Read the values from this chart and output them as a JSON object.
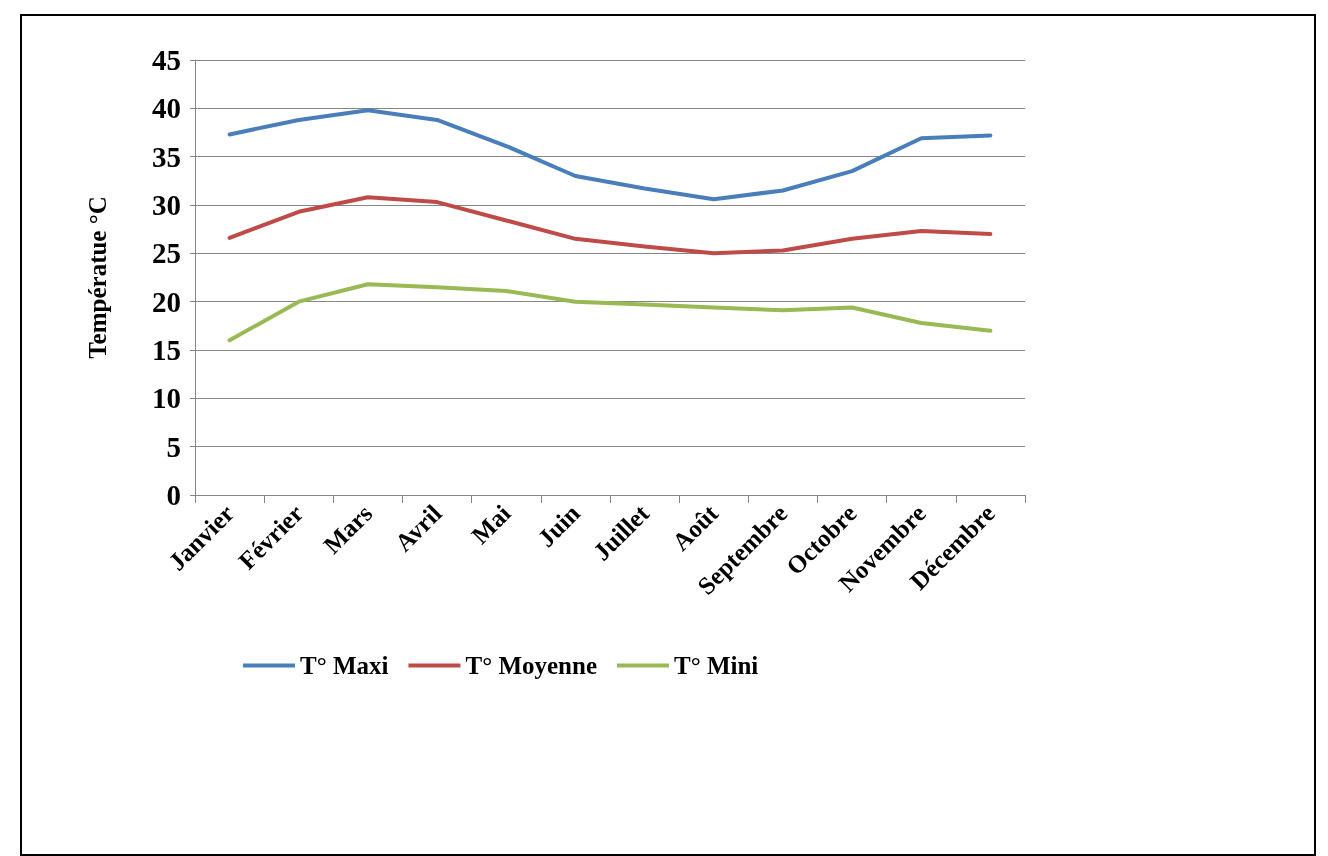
{
  "chart_data": {
    "type": "line",
    "ylabel": "Températue °C",
    "categories": [
      "Janvier",
      "Février",
      "Mars",
      "Avril",
      "Mai",
      "Juin",
      "Juillet",
      "Août",
      "Septembre",
      "Octobre",
      "Novembre",
      "Décembre"
    ],
    "series": [
      {
        "name": "T° Maxi",
        "color": "#4a7ebb",
        "values": [
          37.3,
          38.8,
          39.8,
          38.8,
          36.1,
          33,
          31.7,
          30.6,
          31.5,
          33.5,
          36.9,
          37.2
        ]
      },
      {
        "name": "T° Moyenne",
        "color": "#be4b48",
        "values": [
          26.6,
          29.3,
          30.8,
          30.3,
          28.4,
          26.5,
          25.7,
          25,
          25.3,
          26.5,
          27.3,
          27
        ]
      },
      {
        "name": "T° Mini",
        "color": "#98b954",
        "values": [
          16,
          20,
          21.8,
          21.5,
          21.1,
          20,
          19.7,
          19.4,
          19.1,
          19.4,
          17.8,
          17
        ]
      }
    ],
    "ylim": [
      0,
      45
    ],
    "yticks": [
      0,
      5,
      10,
      15,
      20,
      25,
      30,
      35,
      40,
      45
    ],
    "grid": "y",
    "legend": "bottom",
    "marker": "none",
    "line_style": "solid"
  }
}
